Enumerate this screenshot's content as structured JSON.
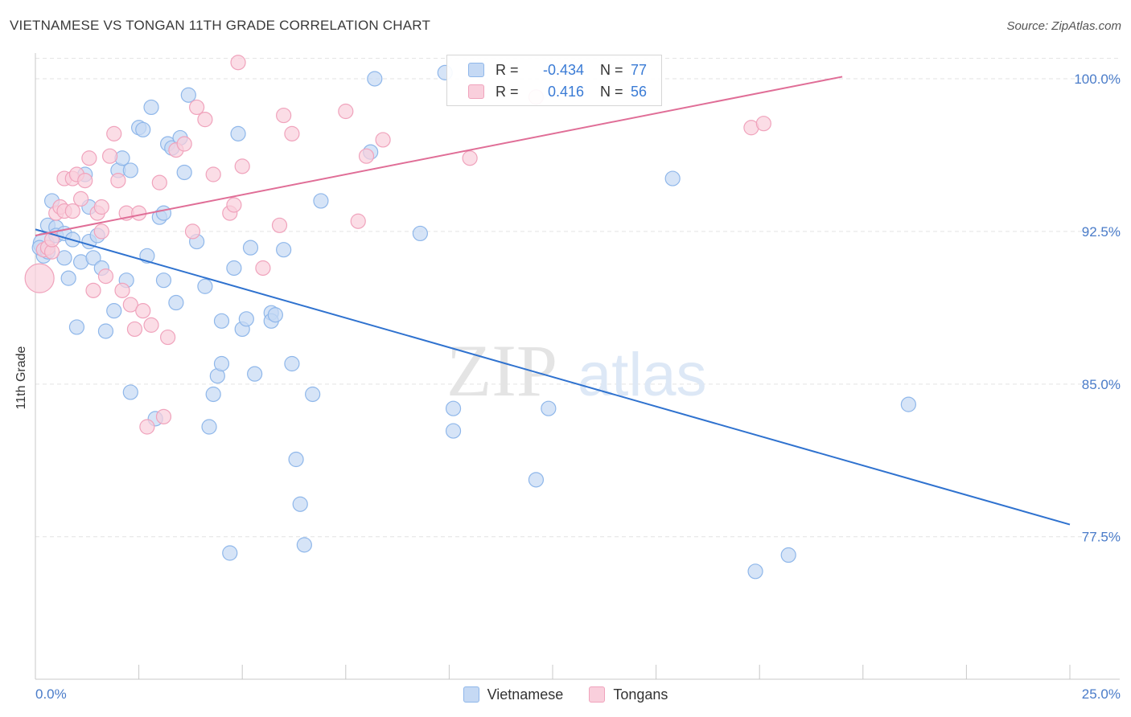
{
  "header": {
    "title": "VIETNAMESE VS TONGAN 11TH GRADE CORRELATION CHART",
    "source": "Source: ZipAtlas.com"
  },
  "watermark": {
    "zip": "ZIP",
    "atlas": "atlas"
  },
  "legend": {
    "rows": [
      {
        "r_label": "R =",
        "r_value": "-0.434",
        "n_label": "N =",
        "n_value": "77",
        "color": "#8fb7ea",
        "fill": "#c5d9f4"
      },
      {
        "r_label": "R =",
        "r_value": "0.416",
        "n_label": "N =",
        "n_value": "56",
        "color": "#f0a3bc",
        "fill": "#f9cfdc"
      }
    ]
  },
  "bottom_legend": {
    "items": [
      {
        "label": "Vietnamese",
        "color": "#8fb7ea",
        "fill": "#c5d9f4"
      },
      {
        "label": "Tongans",
        "color": "#f0a3bc",
        "fill": "#f9cfdc"
      }
    ]
  },
  "chart_data": {
    "type": "scatter",
    "title": "VIETNAMESE VS TONGAN 11TH GRADE CORRELATION CHART",
    "xlabel": "",
    "ylabel": "11th Grade",
    "xlim": [
      0,
      25
    ],
    "ylim": [
      70.5,
      101.5
    ],
    "x_tick_labels": [
      {
        "value": 0,
        "label": "0.0%"
      },
      {
        "value": 25,
        "label": "25.0%"
      }
    ],
    "y_tick_labels": [
      {
        "value": 100,
        "label": "100.0%"
      },
      {
        "value": 92.5,
        "label": "92.5%"
      },
      {
        "value": 85,
        "label": "85.0%"
      },
      {
        "value": 77.5,
        "label": "77.5%"
      }
    ],
    "grid": "horizontal dashed",
    "legend_position": "top-center",
    "series": [
      {
        "name": "Vietnamese",
        "color": "#8fb7ea",
        "fill": "#c5d9f4",
        "trend_color": "#2f72cf",
        "trend": {
          "x": [
            0,
            25
          ],
          "y": [
            92.6,
            78.1
          ]
        },
        "points": [
          [
            0.2,
            91.9
          ],
          [
            0.2,
            91.3
          ],
          [
            0.3,
            92.8
          ],
          [
            0.4,
            94.0
          ],
          [
            0.5,
            92.7
          ],
          [
            0.5,
            92.3
          ],
          [
            0.7,
            91.2
          ],
          [
            0.7,
            92.4
          ],
          [
            0.8,
            90.2
          ],
          [
            0.9,
            92.1
          ],
          [
            1.0,
            87.8
          ],
          [
            1.1,
            91.0
          ],
          [
            1.2,
            95.3
          ],
          [
            1.3,
            92.0
          ],
          [
            1.3,
            93.7
          ],
          [
            1.4,
            91.2
          ],
          [
            1.5,
            92.3
          ],
          [
            1.6,
            90.7
          ],
          [
            1.7,
            87.6
          ],
          [
            1.9,
            88.6
          ],
          [
            2.0,
            95.5
          ],
          [
            2.1,
            96.1
          ],
          [
            2.2,
            90.1
          ],
          [
            2.3,
            84.6
          ],
          [
            2.3,
            95.5
          ],
          [
            2.5,
            97.6
          ],
          [
            2.6,
            97.5
          ],
          [
            2.7,
            91.3
          ],
          [
            2.8,
            98.6
          ],
          [
            2.9,
            83.3
          ],
          [
            3.0,
            93.2
          ],
          [
            3.1,
            90.1
          ],
          [
            3.1,
            93.4
          ],
          [
            3.2,
            96.8
          ],
          [
            3.3,
            96.6
          ],
          [
            3.4,
            89.0
          ],
          [
            3.5,
            97.1
          ],
          [
            3.6,
            95.4
          ],
          [
            3.7,
            99.2
          ],
          [
            3.9,
            92.0
          ],
          [
            4.1,
            89.8
          ],
          [
            4.2,
            82.9
          ],
          [
            4.3,
            84.5
          ],
          [
            4.4,
            85.4
          ],
          [
            4.5,
            86.0
          ],
          [
            4.5,
            88.1
          ],
          [
            4.7,
            76.7
          ],
          [
            4.8,
            90.7
          ],
          [
            4.9,
            97.3
          ],
          [
            5.0,
            87.7
          ],
          [
            5.1,
            88.2
          ],
          [
            5.2,
            91.7
          ],
          [
            5.3,
            85.5
          ],
          [
            5.7,
            88.5
          ],
          [
            5.7,
            88.1
          ],
          [
            5.8,
            88.4
          ],
          [
            6.0,
            91.6
          ],
          [
            6.2,
            86.0
          ],
          [
            6.3,
            81.3
          ],
          [
            6.4,
            79.1
          ],
          [
            6.5,
            77.1
          ],
          [
            6.7,
            84.5
          ],
          [
            6.9,
            94.0
          ],
          [
            8.1,
            96.4
          ],
          [
            8.2,
            100.0
          ],
          [
            9.3,
            92.4
          ],
          [
            9.9,
            100.3
          ],
          [
            10.1,
            83.8
          ],
          [
            10.1,
            82.7
          ],
          [
            12.1,
            80.3
          ],
          [
            12.4,
            83.8
          ],
          [
            15.4,
            95.1
          ],
          [
            17.4,
            75.8
          ],
          [
            18.2,
            76.6
          ],
          [
            21.1,
            84.0
          ],
          [
            0.1,
            91.7
          ],
          [
            0.3,
            91.5
          ]
        ]
      },
      {
        "name": "Tongans",
        "color": "#f0a3bc",
        "fill": "#f9cfdc",
        "trend_color": "#e06e97",
        "trend": {
          "x": [
            0,
            19.5
          ],
          "y": [
            92.3,
            100.1
          ]
        },
        "points": [
          [
            0.1,
            90.2
          ],
          [
            0.2,
            91.6
          ],
          [
            0.3,
            91.7
          ],
          [
            0.4,
            91.5
          ],
          [
            0.5,
            93.4
          ],
          [
            0.6,
            93.7
          ],
          [
            0.7,
            93.5
          ],
          [
            0.7,
            95.1
          ],
          [
            0.9,
            95.1
          ],
          [
            0.9,
            93.5
          ],
          [
            1.0,
            95.3
          ],
          [
            1.1,
            94.1
          ],
          [
            1.2,
            95.0
          ],
          [
            1.3,
            96.1
          ],
          [
            1.4,
            89.6
          ],
          [
            1.5,
            93.4
          ],
          [
            1.6,
            93.7
          ],
          [
            1.7,
            90.3
          ],
          [
            1.8,
            96.2
          ],
          [
            1.9,
            97.3
          ],
          [
            2.0,
            95.0
          ],
          [
            2.1,
            89.6
          ],
          [
            2.2,
            93.4
          ],
          [
            2.3,
            88.9
          ],
          [
            2.4,
            87.7
          ],
          [
            2.5,
            93.4
          ],
          [
            2.6,
            88.6
          ],
          [
            2.7,
            82.9
          ],
          [
            2.8,
            87.9
          ],
          [
            3.0,
            94.9
          ],
          [
            3.1,
            83.4
          ],
          [
            3.2,
            87.3
          ],
          [
            3.4,
            96.5
          ],
          [
            3.6,
            96.8
          ],
          [
            3.8,
            92.5
          ],
          [
            3.9,
            98.6
          ],
          [
            4.1,
            98.0
          ],
          [
            4.3,
            95.3
          ],
          [
            4.7,
            93.4
          ],
          [
            4.8,
            93.8
          ],
          [
            4.9,
            100.8
          ],
          [
            5.0,
            95.7
          ],
          [
            5.5,
            90.7
          ],
          [
            5.9,
            92.8
          ],
          [
            6.0,
            98.2
          ],
          [
            6.2,
            97.3
          ],
          [
            7.5,
            98.4
          ],
          [
            7.8,
            93.0
          ],
          [
            8.0,
            96.2
          ],
          [
            8.4,
            97.0
          ],
          [
            10.5,
            96.1
          ],
          [
            12.1,
            99.1
          ],
          [
            17.3,
            97.6
          ],
          [
            17.6,
            97.8
          ],
          [
            0.4,
            92.1
          ],
          [
            1.6,
            92.5
          ]
        ]
      }
    ]
  }
}
